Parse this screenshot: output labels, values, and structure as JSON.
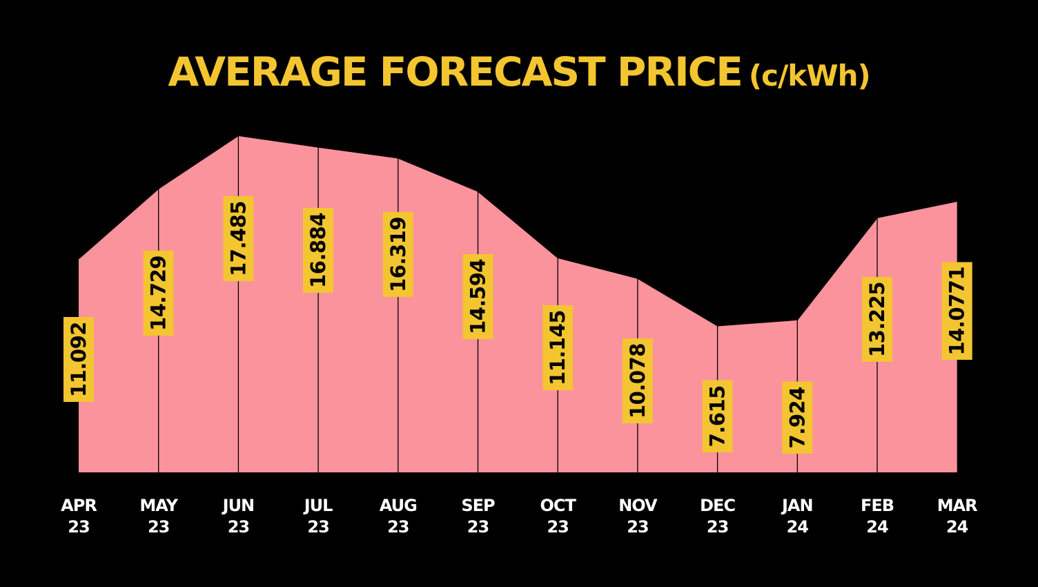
{
  "chart_data": {
    "type": "area",
    "title": "AVERAGE FORECAST PRICE",
    "unit_label": "(c/kWh)",
    "categories": [
      [
        "APR",
        "23"
      ],
      [
        "MAY",
        "23"
      ],
      [
        "JUN",
        "23"
      ],
      [
        "JUL",
        "23"
      ],
      [
        "AUG",
        "23"
      ],
      [
        "SEP",
        "23"
      ],
      [
        "OCT",
        "23"
      ],
      [
        "NOV",
        "23"
      ],
      [
        "DEC",
        "23"
      ],
      [
        "JAN",
        "24"
      ],
      [
        "FEB",
        "24"
      ],
      [
        "MAR",
        "24"
      ]
    ],
    "values": [
      11.092,
      14.729,
      17.485,
      16.884,
      16.319,
      14.594,
      11.145,
      10.078,
      7.615,
      7.924,
      13.225,
      14.0771
    ],
    "value_labels": [
      "11.092",
      "14.729",
      "17.485",
      "16.884",
      "16.319",
      "14.594",
      "11.145",
      "10.078",
      "7.615",
      "7.924",
      "13.225",
      "14.0771"
    ],
    "ylim": [
      0,
      17.485
    ],
    "grid": false,
    "legend": "none",
    "colors": {
      "background": "#000000",
      "area_fill": "#fb939c",
      "outline": "#000000",
      "label_box": "#f2c531",
      "label_text": "#000000",
      "title": "#f2c531",
      "axis_text": "#ffffff"
    }
  }
}
